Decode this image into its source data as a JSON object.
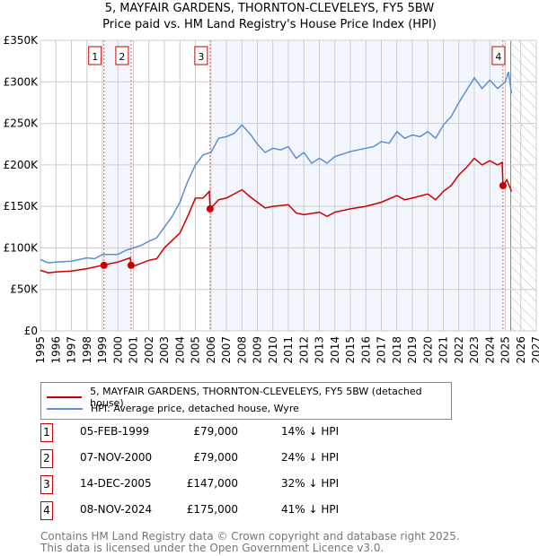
{
  "chart_data": {
    "type": "line",
    "title": "5, MAYFAIR GARDENS, THORNTON-CLEVELEYS, FY5 5BW",
    "subtitle": "Price paid vs. HM Land Registry's House Price Index (HPI)",
    "xlim": [
      1995,
      2027
    ],
    "ylim": [
      0,
      350000
    ],
    "yticks": [
      0,
      50000,
      100000,
      150000,
      200000,
      250000,
      300000,
      350000
    ],
    "ytick_labels": [
      "£0",
      "£50K",
      "£100K",
      "£150K",
      "£200K",
      "£250K",
      "£300K",
      "£350K"
    ],
    "xticks": [
      "1995",
      "1996",
      "1997",
      "1998",
      "1999",
      "2000",
      "2001",
      "2002",
      "2003",
      "2004",
      "2005",
      "2006",
      "2007",
      "2008",
      "2009",
      "2010",
      "2011",
      "2012",
      "2013",
      "2014",
      "2015",
      "2016",
      "2017",
      "2018",
      "2019",
      "2020",
      "2021",
      "2022",
      "2023",
      "2024",
      "2025",
      "2026",
      "2027"
    ],
    "grid": true,
    "forecast_start": 2025.35,
    "series": [
      {
        "name": "5, MAYFAIR GARDENS, THORNTON-CLEVELEYS, FY5 5BW (detached house)",
        "color": "#cc0000",
        "x": [
          1995,
          1995.5,
          1996,
          1997,
          1998,
          1999,
          2000,
          2000.8,
          2000.85,
          2001,
          2002,
          2002.5,
          2003,
          2004,
          2004.5,
          2005,
          2005.5,
          2005.9,
          2005.95,
          2006.5,
          2007,
          2008,
          2008.5,
          2009,
          2009.5,
          2010,
          2011,
          2011.5,
          2012,
          2013,
          2013.5,
          2014,
          2015,
          2016,
          2017,
          2018,
          2018.5,
          2019,
          2020,
          2020.5,
          2021,
          2021.5,
          2022,
          2022.5,
          2023,
          2023.5,
          2024,
          2024.5,
          2024.8,
          2024.85,
          2025.1,
          2025.4
        ],
        "y": [
          73,
          70,
          71,
          72,
          75,
          79,
          83,
          88,
          79,
          78,
          85,
          87,
          100,
          118,
          138,
          160,
          160,
          168,
          147,
          158,
          160,
          170,
          162,
          155,
          148,
          150,
          152,
          142,
          140,
          143,
          138,
          143,
          147,
          150,
          155,
          163,
          158,
          160,
          165,
          158,
          168,
          175,
          188,
          197,
          208,
          200,
          205,
          200,
          203,
          175,
          182,
          168
        ]
      },
      {
        "name": "HPI: Average price, detached house, Wyre",
        "color": "#5b8fd0",
        "x": [
          1995,
          1995.5,
          1996,
          1997,
          1998,
          1998.5,
          1999,
          2000,
          2000.5,
          2001,
          2001.5,
          2002,
          2002.5,
          2003,
          2003.5,
          2004,
          2004.5,
          2005,
          2005.5,
          2006,
          2006.5,
          2007,
          2007.5,
          2008,
          2008.5,
          2009,
          2009.5,
          2010,
          2010.5,
          2011,
          2011.5,
          2012,
          2012.5,
          2013,
          2013.5,
          2014,
          2014.5,
          2015,
          2015.5,
          2016,
          2016.5,
          2017,
          2017.5,
          2018,
          2018.5,
          2019,
          2019.5,
          2020,
          2020.5,
          2021,
          2021.5,
          2022,
          2022.5,
          2023,
          2023.5,
          2024,
          2024.5,
          2025,
          2025.2,
          2025.4
        ],
        "y": [
          86,
          82,
          83,
          84,
          88,
          87,
          92,
          92,
          97,
          100,
          103,
          108,
          112,
          125,
          138,
          155,
          180,
          200,
          212,
          215,
          232,
          234,
          238,
          248,
          238,
          225,
          215,
          220,
          218,
          222,
          208,
          215,
          202,
          208,
          202,
          210,
          213,
          216,
          218,
          220,
          222,
          228,
          226,
          240,
          232,
          236,
          234,
          240,
          232,
          248,
          258,
          275,
          290,
          305,
          292,
          302,
          292,
          300,
          312,
          286
        ]
      }
    ],
    "y_units": "thousand GBP",
    "sales": [
      {
        "label": "1",
        "x": 1999.1,
        "y": 79,
        "date": "05-FEB-1999",
        "price": "£79,000",
        "hpi": "14% ↓ HPI"
      },
      {
        "label": "2",
        "x": 2000.85,
        "y": 79,
        "date": "07-NOV-2000",
        "price": "£79,000",
        "hpi": "24% ↓ HPI"
      },
      {
        "label": "3",
        "x": 2005.95,
        "y": 147,
        "date": "14-DEC-2005",
        "price": "£147,000",
        "hpi": "32% ↓ HPI"
      },
      {
        "label": "4",
        "x": 2024.85,
        "y": 175,
        "date": "08-NOV-2024",
        "price": "£175,000",
        "hpi": "41% ↓ HPI"
      }
    ],
    "shaded": [
      [
        1999.1,
        2000.85
      ],
      [
        2005.95,
        2024.85
      ]
    ],
    "legend_position": "below"
  },
  "footer": {
    "line1": "Contains HM Land Registry data © Crown copyright and database right 2025.",
    "line2": "This data is licensed under the Open Government Licence v3.0."
  }
}
